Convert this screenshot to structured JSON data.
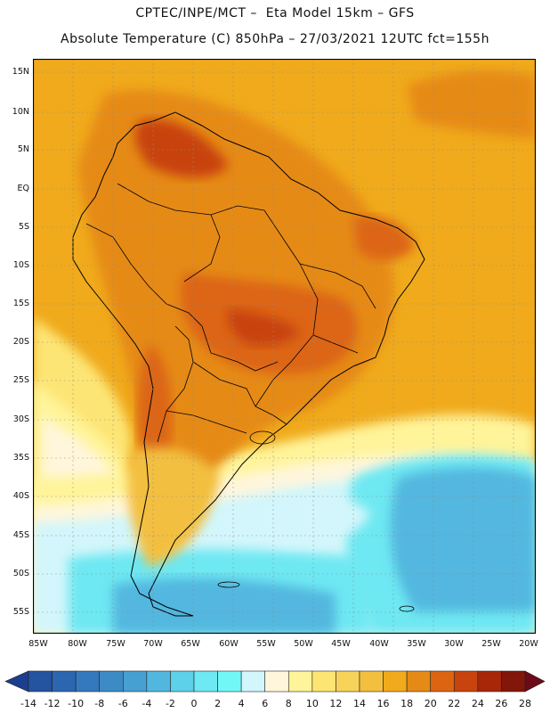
{
  "header": {
    "line1": "CPTEC/INPE/MCT –  Eta Model 15km – GFS",
    "line2": "Absolute Temperature (C) 850hPa – 27/03/2021 12UTC fct=155h"
  },
  "map": {
    "lat_labels": [
      "15N",
      "10N",
      "5N",
      "EQ",
      "5S",
      "10S",
      "15S",
      "20S",
      "25S",
      "30S",
      "35S",
      "40S",
      "45S",
      "50S",
      "55S"
    ],
    "lon_labels": [
      "85W",
      "80W",
      "75W",
      "70W",
      "65W",
      "60W",
      "55W",
      "50W",
      "45W",
      "40W",
      "35W",
      "30W",
      "25W",
      "20W"
    ]
  },
  "colorbar": {
    "labels": [
      "-14",
      "-12",
      "-10",
      "-8",
      "-6",
      "-4",
      "-2",
      "0",
      "2",
      "4",
      "6",
      "8",
      "10",
      "12",
      "14",
      "16",
      "18",
      "20",
      "22",
      "24",
      "26",
      "28"
    ],
    "colors": [
      "#1b3f8e",
      "#24539f",
      "#2c66b0",
      "#3579bd",
      "#3d8bc6",
      "#46a0d2",
      "#52b7df",
      "#5dd0ea",
      "#6ee8f2",
      "#72f7f7",
      "#d2f6fb",
      "#fff6dc",
      "#fff49a",
      "#fde574",
      "#f8d35a",
      "#f3bf3f",
      "#f0aa1c",
      "#e68a16",
      "#dc6512",
      "#c8430d",
      "#a72708",
      "#82160a",
      "#6d0a1a"
    ]
  }
}
